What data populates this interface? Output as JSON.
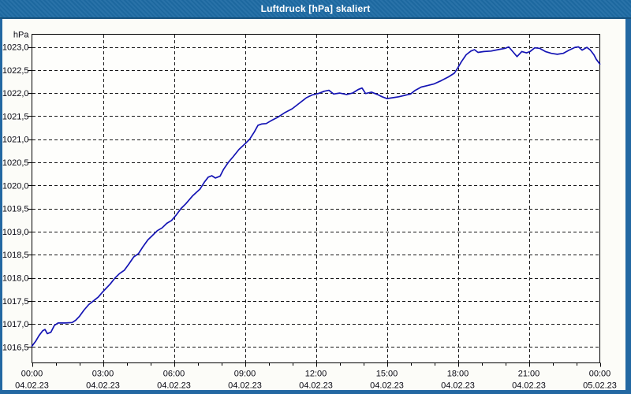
{
  "window": {
    "title": "Luftdruck [hPa] skaliert"
  },
  "colors": {
    "titlebar_bg": "#1e6ba4",
    "titlebar_text": "#ffffff",
    "window_border": "#2368a2",
    "plot_bg": "#fefefc",
    "frame": "#000000",
    "gridline": "#161616",
    "tick": "#000000",
    "label": "#0a0a14",
    "line": "#1414b4"
  },
  "chart_data": {
    "type": "line",
    "title": "Luftdruck [hPa] skaliert",
    "xlabel": "",
    "ylabel": "hPa",
    "grid": true,
    "legend": false,
    "xlim_hours": [
      0,
      24
    ],
    "ylim": [
      1016.15,
      1023.25
    ],
    "y_tick_step": 0.5,
    "y_ticks": [
      {
        "value": 1023.0,
        "label": "1023,0"
      },
      {
        "value": 1022.5,
        "label": "1022,5"
      },
      {
        "value": 1022.0,
        "label": "1022,0"
      },
      {
        "value": 1021.5,
        "label": "1021,5"
      },
      {
        "value": 1021.0,
        "label": "1021,0"
      },
      {
        "value": 1020.5,
        "label": "1020,5"
      },
      {
        "value": 1020.0,
        "label": "1020,0"
      },
      {
        "value": 1019.5,
        "label": "1019,5"
      },
      {
        "value": 1019.0,
        "label": "1019,0"
      },
      {
        "value": 1018.5,
        "label": "1018,5"
      },
      {
        "value": 1018.0,
        "label": "1018,0"
      },
      {
        "value": 1017.5,
        "label": "1017,5"
      },
      {
        "value": 1017.0,
        "label": "1017,0"
      },
      {
        "value": 1016.5,
        "label": "1016,5"
      }
    ],
    "x_ticks": [
      {
        "hour": 0,
        "time": "00:00",
        "date": "04.02.23"
      },
      {
        "hour": 3,
        "time": "03:00",
        "date": "04.02.23"
      },
      {
        "hour": 6,
        "time": "06:00",
        "date": "04.02.23"
      },
      {
        "hour": 9,
        "time": "09:00",
        "date": "04.02.23"
      },
      {
        "hour": 12,
        "time": "12:00",
        "date": "04.02.23"
      },
      {
        "hour": 15,
        "time": "15:00",
        "date": "04.02.23"
      },
      {
        "hour": 18,
        "time": "18:00",
        "date": "04.02.23"
      },
      {
        "hour": 21,
        "time": "21:00",
        "date": "04.02.23"
      },
      {
        "hour": 24,
        "time": "00:00",
        "date": "05.02.23"
      }
    ],
    "minor_x_tick_every_hours": 1,
    "series": [
      {
        "name": "Luftdruck",
        "unit": "hPa",
        "points": [
          [
            0.0,
            1016.52
          ],
          [
            0.15,
            1016.62
          ],
          [
            0.3,
            1016.75
          ],
          [
            0.45,
            1016.85
          ],
          [
            0.55,
            1016.88
          ],
          [
            0.65,
            1016.79
          ],
          [
            0.8,
            1016.82
          ],
          [
            0.95,
            1016.97
          ],
          [
            1.1,
            1017.02
          ],
          [
            1.4,
            1017.02
          ],
          [
            1.7,
            1017.03
          ],
          [
            1.85,
            1017.08
          ],
          [
            2.0,
            1017.16
          ],
          [
            2.2,
            1017.3
          ],
          [
            2.4,
            1017.42
          ],
          [
            2.6,
            1017.5
          ],
          [
            2.8,
            1017.58
          ],
          [
            3.0,
            1017.7
          ],
          [
            3.15,
            1017.78
          ],
          [
            3.3,
            1017.86
          ],
          [
            3.5,
            1017.99
          ],
          [
            3.7,
            1018.09
          ],
          [
            3.9,
            1018.16
          ],
          [
            4.1,
            1018.3
          ],
          [
            4.3,
            1018.45
          ],
          [
            4.5,
            1018.52
          ],
          [
            4.7,
            1018.68
          ],
          [
            4.9,
            1018.82
          ],
          [
            5.1,
            1018.92
          ],
          [
            5.3,
            1019.02
          ],
          [
            5.5,
            1019.08
          ],
          [
            5.7,
            1019.18
          ],
          [
            5.9,
            1019.24
          ],
          [
            6.1,
            1019.36
          ],
          [
            6.3,
            1019.5
          ],
          [
            6.5,
            1019.6
          ],
          [
            6.8,
            1019.78
          ],
          [
            7.1,
            1019.92
          ],
          [
            7.3,
            1020.08
          ],
          [
            7.45,
            1020.18
          ],
          [
            7.6,
            1020.21
          ],
          [
            7.75,
            1020.16
          ],
          [
            7.95,
            1020.2
          ],
          [
            8.1,
            1020.35
          ],
          [
            8.3,
            1020.5
          ],
          [
            8.5,
            1020.62
          ],
          [
            8.75,
            1020.78
          ],
          [
            9.0,
            1020.9
          ],
          [
            9.2,
            1021.0
          ],
          [
            9.4,
            1021.16
          ],
          [
            9.55,
            1021.3
          ],
          [
            9.7,
            1021.33
          ],
          [
            9.9,
            1021.34
          ],
          [
            10.1,
            1021.4
          ],
          [
            10.4,
            1021.48
          ],
          [
            10.7,
            1021.58
          ],
          [
            11.0,
            1021.66
          ],
          [
            11.3,
            1021.78
          ],
          [
            11.6,
            1021.9
          ],
          [
            11.85,
            1021.96
          ],
          [
            12.1,
            1021.99
          ],
          [
            12.35,
            1022.04
          ],
          [
            12.55,
            1022.06
          ],
          [
            12.75,
            1021.98
          ],
          [
            13.0,
            1022.0
          ],
          [
            13.3,
            1021.97
          ],
          [
            13.55,
            1022.0
          ],
          [
            13.8,
            1022.08
          ],
          [
            13.95,
            1022.11
          ],
          [
            14.1,
            1021.99
          ],
          [
            14.35,
            1022.02
          ],
          [
            14.6,
            1021.97
          ],
          [
            14.8,
            1021.92
          ],
          [
            15.0,
            1021.88
          ],
          [
            15.25,
            1021.9
          ],
          [
            15.5,
            1021.92
          ],
          [
            15.75,
            1021.95
          ],
          [
            16.0,
            1021.98
          ],
          [
            16.2,
            1022.06
          ],
          [
            16.45,
            1022.13
          ],
          [
            16.7,
            1022.16
          ],
          [
            17.0,
            1022.2
          ],
          [
            17.3,
            1022.27
          ],
          [
            17.6,
            1022.35
          ],
          [
            17.85,
            1022.43
          ],
          [
            18.0,
            1022.55
          ],
          [
            18.15,
            1022.68
          ],
          [
            18.35,
            1022.83
          ],
          [
            18.55,
            1022.91
          ],
          [
            18.7,
            1022.94
          ],
          [
            18.85,
            1022.88
          ],
          [
            19.1,
            1022.9
          ],
          [
            19.4,
            1022.91
          ],
          [
            19.7,
            1022.94
          ],
          [
            20.0,
            1022.97
          ],
          [
            20.15,
            1023.0
          ],
          [
            20.35,
            1022.88
          ],
          [
            20.5,
            1022.79
          ],
          [
            20.7,
            1022.9
          ],
          [
            20.9,
            1022.87
          ],
          [
            21.05,
            1022.9
          ],
          [
            21.25,
            1022.98
          ],
          [
            21.45,
            1022.97
          ],
          [
            21.7,
            1022.9
          ],
          [
            21.95,
            1022.86
          ],
          [
            22.2,
            1022.84
          ],
          [
            22.45,
            1022.86
          ],
          [
            22.7,
            1022.93
          ],
          [
            22.95,
            1022.99
          ],
          [
            23.1,
            1023.0
          ],
          [
            23.25,
            1022.93
          ],
          [
            23.45,
            1022.99
          ],
          [
            23.6,
            1022.93
          ],
          [
            23.75,
            1022.83
          ],
          [
            23.85,
            1022.73
          ],
          [
            24.0,
            1022.63
          ]
        ]
      }
    ]
  }
}
